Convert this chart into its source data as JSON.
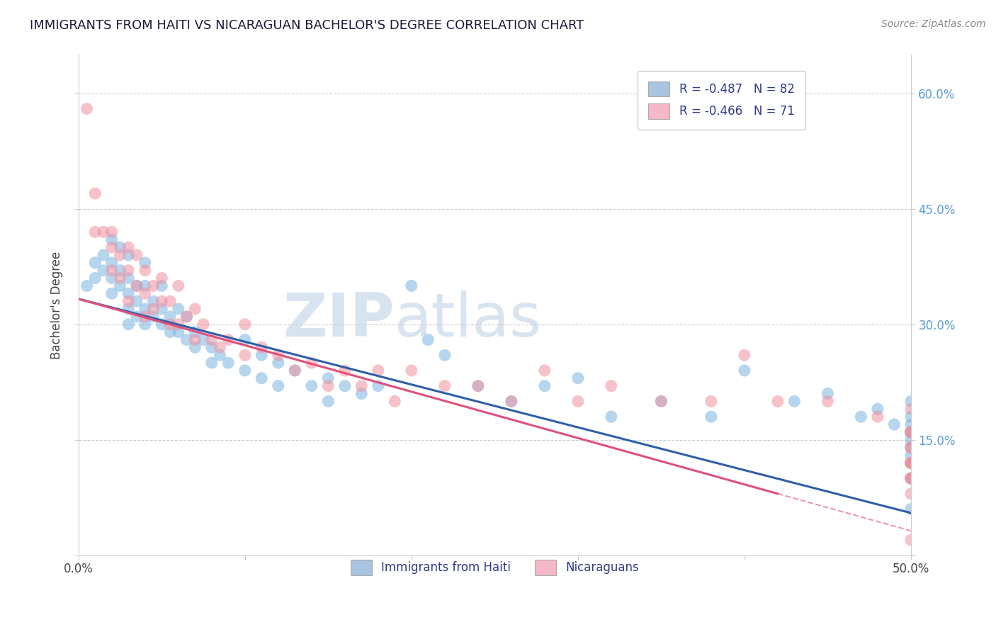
{
  "title": "IMMIGRANTS FROM HAITI VS NICARAGUAN BACHELOR'S DEGREE CORRELATION CHART",
  "source_text": "Source: ZipAtlas.com",
  "ylabel": "Bachelor's Degree",
  "xlim": [
    0.0,
    0.5
  ],
  "ylim": [
    0.0,
    0.65
  ],
  "xtick_vals": [
    0.0,
    0.1,
    0.2,
    0.3,
    0.4,
    0.5
  ],
  "xtick_labels": [
    "0.0%",
    "",
    "",
    "",
    "",
    "50.0%"
  ],
  "ytick_positions": [
    0.0,
    0.15,
    0.3,
    0.45,
    0.6
  ],
  "right_ytick_labels": [
    "",
    "15.0%",
    "30.0%",
    "45.0%",
    "60.0%"
  ],
  "haiti_scatter_x": [
    0.005,
    0.01,
    0.01,
    0.015,
    0.015,
    0.02,
    0.02,
    0.02,
    0.02,
    0.025,
    0.025,
    0.025,
    0.03,
    0.03,
    0.03,
    0.03,
    0.03,
    0.035,
    0.035,
    0.035,
    0.04,
    0.04,
    0.04,
    0.04,
    0.045,
    0.045,
    0.05,
    0.05,
    0.05,
    0.055,
    0.055,
    0.06,
    0.06,
    0.065,
    0.065,
    0.07,
    0.07,
    0.075,
    0.08,
    0.08,
    0.085,
    0.09,
    0.1,
    0.1,
    0.11,
    0.11,
    0.12,
    0.12,
    0.13,
    0.14,
    0.15,
    0.15,
    0.16,
    0.17,
    0.18,
    0.2,
    0.21,
    0.22,
    0.24,
    0.26,
    0.28,
    0.3,
    0.32,
    0.35,
    0.38,
    0.4,
    0.43,
    0.45,
    0.47,
    0.48,
    0.49,
    0.5,
    0.5,
    0.5,
    0.5,
    0.5,
    0.5,
    0.5,
    0.5,
    0.5,
    0.5,
    0.5
  ],
  "haiti_scatter_y": [
    0.35,
    0.38,
    0.36,
    0.39,
    0.37,
    0.41,
    0.38,
    0.36,
    0.34,
    0.4,
    0.37,
    0.35,
    0.39,
    0.36,
    0.34,
    0.32,
    0.3,
    0.35,
    0.33,
    0.31,
    0.38,
    0.35,
    0.32,
    0.3,
    0.33,
    0.31,
    0.35,
    0.32,
    0.3,
    0.31,
    0.29,
    0.32,
    0.29,
    0.31,
    0.28,
    0.29,
    0.27,
    0.28,
    0.27,
    0.25,
    0.26,
    0.25,
    0.28,
    0.24,
    0.26,
    0.23,
    0.25,
    0.22,
    0.24,
    0.22,
    0.23,
    0.2,
    0.22,
    0.21,
    0.22,
    0.35,
    0.28,
    0.26,
    0.22,
    0.2,
    0.22,
    0.23,
    0.18,
    0.2,
    0.18,
    0.24,
    0.2,
    0.21,
    0.18,
    0.19,
    0.17,
    0.2,
    0.18,
    0.16,
    0.17,
    0.15,
    0.16,
    0.14,
    0.13,
    0.12,
    0.1,
    0.06
  ],
  "nicaragua_scatter_x": [
    0.005,
    0.01,
    0.01,
    0.015,
    0.02,
    0.02,
    0.02,
    0.025,
    0.025,
    0.03,
    0.03,
    0.03,
    0.035,
    0.035,
    0.04,
    0.04,
    0.04,
    0.045,
    0.045,
    0.05,
    0.05,
    0.055,
    0.055,
    0.06,
    0.06,
    0.065,
    0.07,
    0.07,
    0.075,
    0.08,
    0.085,
    0.09,
    0.1,
    0.1,
    0.11,
    0.12,
    0.13,
    0.14,
    0.15,
    0.16,
    0.17,
    0.18,
    0.19,
    0.2,
    0.22,
    0.24,
    0.26,
    0.28,
    0.3,
    0.32,
    0.35,
    0.38,
    0.4,
    0.42,
    0.45,
    0.48,
    0.5,
    0.5,
    0.5,
    0.5,
    0.5,
    0.5,
    0.5,
    0.5,
    0.5,
    0.5,
    0.5,
    0.5,
    0.5,
    0.5,
    0.5
  ],
  "nicaragua_scatter_y": [
    0.58,
    0.47,
    0.42,
    0.42,
    0.42,
    0.4,
    0.37,
    0.39,
    0.36,
    0.4,
    0.37,
    0.33,
    0.39,
    0.35,
    0.37,
    0.34,
    0.31,
    0.35,
    0.32,
    0.36,
    0.33,
    0.33,
    0.3,
    0.35,
    0.3,
    0.31,
    0.32,
    0.28,
    0.3,
    0.28,
    0.27,
    0.28,
    0.3,
    0.26,
    0.27,
    0.26,
    0.24,
    0.25,
    0.22,
    0.24,
    0.22,
    0.24,
    0.2,
    0.24,
    0.22,
    0.22,
    0.2,
    0.24,
    0.2,
    0.22,
    0.2,
    0.2,
    0.26,
    0.2,
    0.2,
    0.18,
    0.19,
    0.16,
    0.16,
    0.14,
    0.12,
    0.16,
    0.12,
    0.1,
    0.14,
    0.12,
    0.1,
    0.12,
    0.1,
    0.08,
    0.02
  ],
  "haiti_line_x": [
    0.0,
    0.5
  ],
  "haiti_line_y": [
    0.333,
    0.055
  ],
  "nicaragua_line_x": [
    0.0,
    0.42
  ],
  "nicaragua_line_y": [
    0.333,
    0.08
  ],
  "haiti_color": "#7ab3e0",
  "nicaragua_color": "#f090a0",
  "haiti_line_color": "#2e5fa8",
  "nicaragua_line_color": "#e0507a",
  "background_color": "#ffffff",
  "grid_color": "#cccccc"
}
